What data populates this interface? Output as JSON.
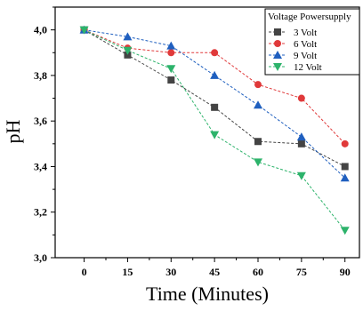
{
  "chart_data": {
    "type": "line",
    "xlabel": "Time (Minutes)",
    "ylabel": "pH",
    "x": [
      0,
      15,
      30,
      45,
      60,
      75,
      90
    ],
    "x_tick_labels": [
      "0",
      "15",
      "30",
      "45",
      "60",
      "75",
      "90"
    ],
    "xlim": [
      -10,
      95
    ],
    "ylim": [
      3.0,
      4.1
    ],
    "y_ticks": [
      3.0,
      3.2,
      3.4,
      3.6,
      3.8,
      4.0
    ],
    "y_tick_labels": [
      "3,0",
      "3,2",
      "3,4",
      "3,6",
      "3,8",
      "4,0"
    ],
    "grid": false,
    "legend": {
      "title": "Voltage Powersupply",
      "placement": "top-right"
    },
    "series": [
      {
        "name": "3 Volt",
        "color": "#444444",
        "marker": "square",
        "values": [
          4.0,
          3.89,
          3.78,
          3.66,
          3.51,
          3.5,
          3.4
        ]
      },
      {
        "name": "6 Volt",
        "color": "#e0393a",
        "marker": "circle",
        "values": [
          4.0,
          3.92,
          3.9,
          3.9,
          3.76,
          3.7,
          3.5
        ]
      },
      {
        "name": "9 Volt",
        "color": "#1f5fbf",
        "marker": "triangle-up",
        "values": [
          4.0,
          3.97,
          3.93,
          3.8,
          3.67,
          3.53,
          3.35
        ]
      },
      {
        "name": "12 Volt",
        "color": "#2db36b",
        "marker": "triangle-down",
        "values": [
          4.0,
          3.91,
          3.83,
          3.54,
          3.42,
          3.36,
          3.12
        ]
      }
    ]
  }
}
